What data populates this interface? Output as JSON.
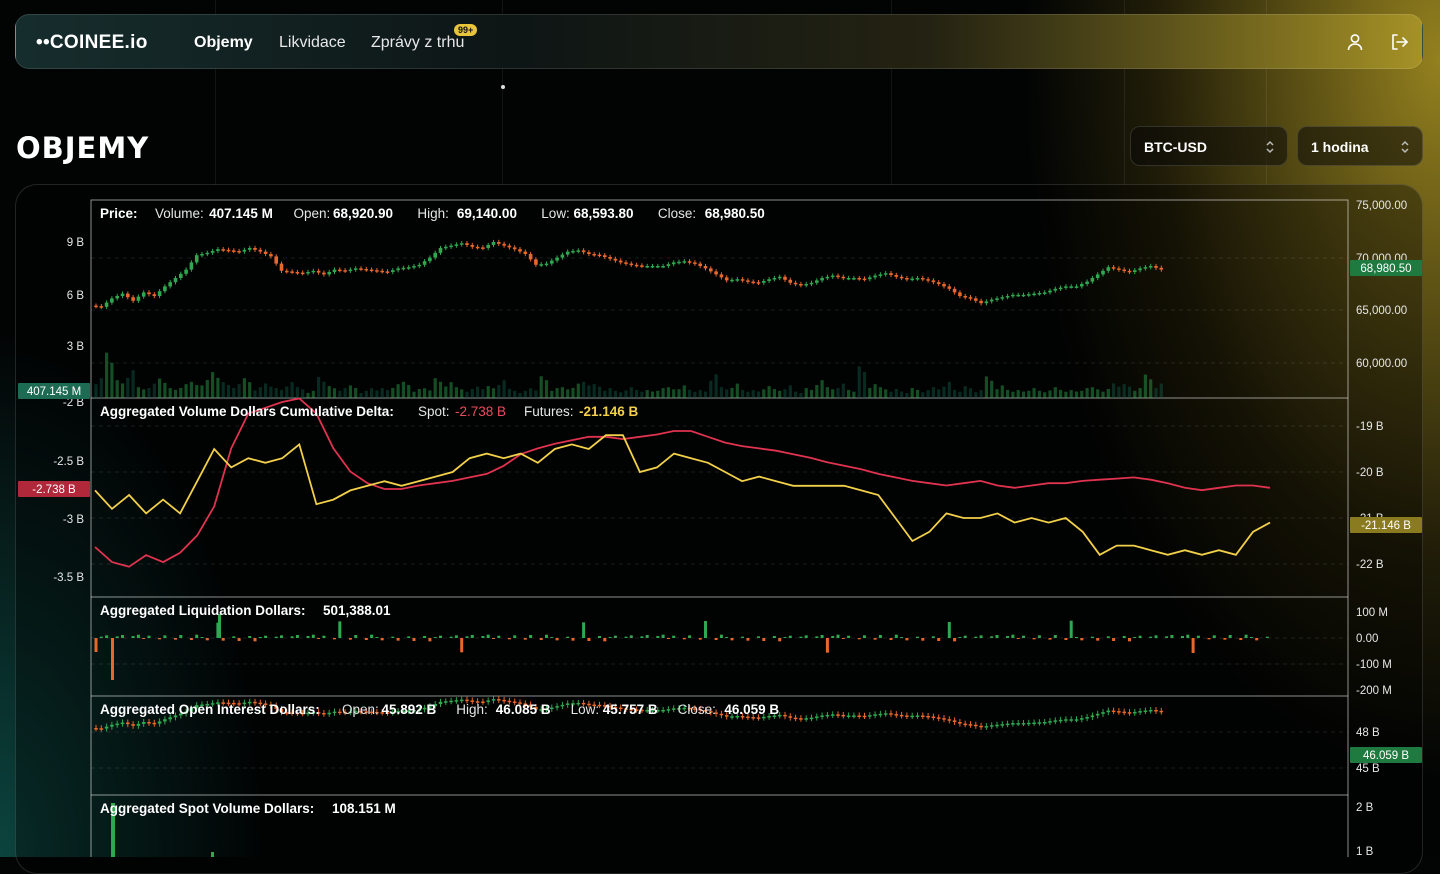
{
  "app": {
    "logo": "••COINEE.io"
  },
  "nav": {
    "items": [
      {
        "label": "Objemy",
        "active": true
      },
      {
        "label": "Likvidace",
        "active": false
      },
      {
        "label": "Zprávy z trhu",
        "active": false
      }
    ],
    "badge": "99+",
    "icons": [
      "user-icon",
      "logout-icon"
    ]
  },
  "page": {
    "title": "OBJEMY"
  },
  "controls": {
    "symbol": "BTC-USD",
    "interval": "1 hodina"
  },
  "colors": {
    "up": "#2fa84f",
    "down": "#e8672b",
    "spot_line": "#e0334f",
    "futures_line": "#f2d04a",
    "accent_green": "#1e7a3e",
    "accent_red": "#b0283a"
  },
  "chart_data": [
    {
      "type": "candlestick",
      "panel": "price",
      "title": "Price:",
      "legend": [
        {
          "label": "Volume:",
          "value": "407.145 M"
        },
        {
          "label": "Open:",
          "value": "68,920.90"
        },
        {
          "label": "High:",
          "value": "69,140.00"
        },
        {
          "label": "Low:",
          "value": "68,593.80"
        },
        {
          "label": "Close:",
          "value": "68,980.50"
        }
      ],
      "right_ticks": [
        "75,000.00",
        "70,000.00",
        "65,000.00",
        "60,000.00"
      ],
      "left_ticks": [
        "9 B",
        "6 B",
        "3 B",
        "-2 B"
      ],
      "left_marker": "407.145 M",
      "right_marker": "68,980.50",
      "ylim": [
        58500,
        75000
      ],
      "close_path": [
        66200,
        66100,
        66800,
        67200,
        66600,
        67300,
        67000,
        67800,
        68500,
        69200,
        70400,
        70600,
        70900,
        70800,
        70700,
        71000,
        70700,
        70300,
        69100,
        69000,
        68900,
        69100,
        68800,
        69200,
        69100,
        69300,
        69200,
        69100,
        69000,
        69300,
        69400,
        69600,
        70200,
        71000,
        71200,
        71400,
        71100,
        71000,
        71500,
        71200,
        70900,
        70500,
        69600,
        69700,
        70200,
        70700,
        70800,
        70500,
        70400,
        70100,
        69800,
        69600,
        69500,
        69500,
        69500,
        69800,
        69900,
        69700,
        69300,
        68800,
        68300,
        68400,
        68200,
        68100,
        68400,
        68600,
        68100,
        67900,
        68100,
        68500,
        68700,
        68500,
        68500,
        68400,
        68700,
        68900,
        68600,
        68400,
        68500,
        68300,
        68000,
        67600,
        67000,
        66800,
        66400,
        66700,
        66900,
        67100,
        67100,
        67200,
        67300,
        67600,
        67800,
        67800,
        68200,
        68800,
        69400,
        69200,
        69000,
        69300,
        69500,
        69200
      ],
      "volume_path": [
        1.1,
        2.8,
        0.9,
        1.4,
        0.6,
        0.8,
        1.2,
        0.5,
        0.7,
        0.9,
        1.0,
        1.6,
        0.8,
        0.7,
        1.1,
        0.6,
        0.9,
        0.5,
        0.8,
        0.6,
        0.4,
        1.3,
        0.6,
        0.5,
        0.7,
        0.4,
        0.6,
        0.5,
        0.7,
        0.9,
        0.5,
        0.6,
        1.0,
        0.8,
        0.6,
        0.5,
        0.7,
        0.6,
        0.9,
        0.5,
        0.4,
        0.6,
        1.1,
        0.5,
        0.6,
        0.8,
        1.0,
        0.7,
        0.5,
        0.4,
        0.6,
        0.5,
        0.4,
        0.5,
        0.6,
        0.7,
        0.5,
        0.4,
        1.2,
        0.6,
        0.8,
        0.5,
        0.4,
        0.6,
        0.5,
        0.7,
        0.4,
        0.5,
        0.9,
        0.6,
        0.8,
        0.5,
        1.6,
        0.7,
        0.6,
        0.5,
        0.4,
        0.5,
        0.4,
        0.6,
        0.9,
        0.5,
        0.6,
        0.4,
        1.2,
        0.7,
        0.5,
        0.4,
        0.5,
        0.4,
        0.6,
        0.5,
        0.4,
        0.5,
        0.6,
        0.5,
        0.9,
        0.7,
        0.5,
        1.3,
        0.8,
        0.5
      ]
    },
    {
      "type": "line",
      "panel": "cvd",
      "title": "Aggregated Volume Dollars Cumulative Delta:",
      "series": [
        {
          "name": "Spot:",
          "value": "-2.738 B",
          "values": [
            -3.25,
            -3.38,
            -3.42,
            -3.32,
            -3.38,
            -3.3,
            -3.15,
            -2.9,
            -2.4,
            -2.1,
            -2.05,
            -2.0,
            -1.97,
            -2.1,
            -2.4,
            -2.6,
            -2.7,
            -2.75,
            -2.75,
            -2.72,
            -2.7,
            -2.68,
            -2.65,
            -2.62,
            -2.55,
            -2.45,
            -2.4,
            -2.36,
            -2.33,
            -2.3,
            -2.3,
            -2.32,
            -2.3,
            -2.28,
            -2.25,
            -2.25,
            -2.3,
            -2.35,
            -2.38,
            -2.4,
            -2.42,
            -2.45,
            -2.48,
            -2.52,
            -2.55,
            -2.58,
            -2.62,
            -2.65,
            -2.68,
            -2.7,
            -2.72,
            -2.7,
            -2.68,
            -2.72,
            -2.74,
            -2.72,
            -2.7,
            -2.7,
            -2.68,
            -2.67,
            -2.66,
            -2.65,
            -2.67,
            -2.7,
            -2.74,
            -2.76,
            -2.74,
            -2.72,
            -2.72,
            -2.74
          ]
        },
        {
          "name": "Futures:",
          "value": "-21.146 B",
          "values": [
            -20.4,
            -20.8,
            -20.5,
            -20.9,
            -20.6,
            -20.9,
            -20.2,
            -19.5,
            -19.9,
            -19.7,
            -19.8,
            -19.7,
            -19.4,
            -20.7,
            -20.6,
            -20.4,
            -20.3,
            -20.2,
            -20.3,
            -20.2,
            -20.1,
            -20.0,
            -19.7,
            -19.6,
            -19.7,
            -19.6,
            -19.8,
            -19.5,
            -19.4,
            -19.5,
            -19.2,
            -19.2,
            -20.0,
            -19.9,
            -19.6,
            -19.7,
            -19.8,
            -20.0,
            -20.2,
            -20.1,
            -20.2,
            -20.3,
            -20.3,
            -20.3,
            -20.3,
            -20.4,
            -20.5,
            -21.0,
            -21.5,
            -21.3,
            -20.9,
            -21.0,
            -21.0,
            -20.9,
            -21.1,
            -21.0,
            -21.1,
            -21.0,
            -21.3,
            -21.8,
            -21.6,
            -21.6,
            -21.7,
            -21.8,
            -21.7,
            -21.8,
            -21.7,
            -21.8,
            -21.3,
            -21.1
          ]
        }
      ],
      "left_ticks": [
        "-2.5 B",
        "-3 B",
        "-3.5 B"
      ],
      "right_ticks": [
        "-19 B",
        "-20 B",
        "-21 B",
        "-22 B"
      ],
      "left_marker": "-2.738 B",
      "right_marker": "-21.146 B"
    },
    {
      "type": "bar",
      "panel": "liquidations",
      "title": "Aggregated Liquidation Dollars:",
      "value": "501,388.01",
      "right_ticks": [
        "100 M",
        "0.00",
        "-100 M",
        "-200 M"
      ]
    },
    {
      "type": "candlestick",
      "panel": "open_interest",
      "title": "Aggregated Open Interest Dollars:",
      "legend": [
        {
          "label": "Open:",
          "value": "45.892 B"
        },
        {
          "label": "High:",
          "value": "46.085 B"
        },
        {
          "label": "Low:",
          "value": "45.757 B"
        },
        {
          "label": "Close:",
          "value": "46.059 B"
        }
      ],
      "right_ticks": [
        "48 B",
        "45 B"
      ],
      "right_marker": "46.059 B"
    },
    {
      "type": "bar",
      "panel": "spot_volume",
      "title": "Aggregated Spot Volume Dollars:",
      "value": "108.151 M",
      "right_ticks": [
        "2 B",
        "1 B"
      ]
    }
  ]
}
